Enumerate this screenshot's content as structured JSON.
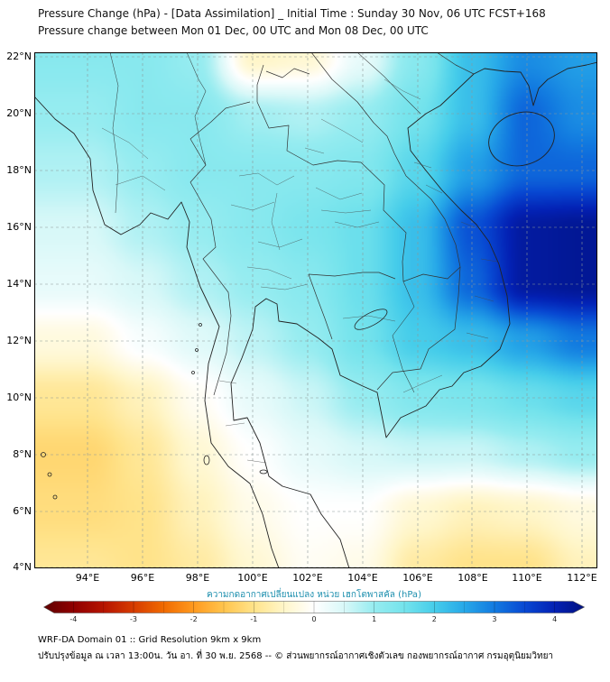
{
  "header": {
    "title": "Pressure Change (hPa) - [Data Assimilation] _ Initial Time : Sunday 30 Nov, 06 UTC FCST+168",
    "subtitle": "Pressure change between Mon 01 Dec, 00 UTC and Mon 08 Dec, 00 UTC"
  },
  "axes": {
    "lat": [
      "22°N",
      "20°N",
      "18°N",
      "16°N",
      "14°N",
      "12°N",
      "10°N",
      "8°N",
      "6°N",
      "4°N"
    ],
    "lon": [
      "94°E",
      "96°E",
      "98°E",
      "100°E",
      "102°E",
      "104°E",
      "106°E",
      "108°E",
      "110°E",
      "112°E"
    ]
  },
  "colorbar": {
    "label": "ความกดอากาศเปลี่ยนแปลง หน่วย เฮกโตพาสคัล (hPa)",
    "label_color": "#1d8fae",
    "ticks": [
      "-4",
      "-3",
      "-2",
      "-1",
      "0",
      "1",
      "2",
      "3",
      "4"
    ]
  },
  "footer": {
    "line1": "WRF-DA Domain 01 :: Grid Resolution 9km x 9km",
    "line2": "ปรับปรุงข้อมูล ณ เวลา 13:00น. วัน อา. ที่ 30 พ.ย. 2568 -- © ส่วนพยากรณ์อากาศเชิงตัวเลข กองพยากรณ์อากาศ กรมอุตุนิยมวิทยา"
  },
  "chart_data": {
    "type": "heatmap",
    "title": "Pressure Change (hPa) - [Data Assimilation] _ Initial Time : Sunday 30 Nov, 06 UTC FCST+168",
    "subtitle": "Pressure change between Mon 01 Dec, 00 UTC and Mon 08 Dec, 00 UTC",
    "units": "hPa",
    "xlabel": "",
    "ylabel": "",
    "grid": true,
    "legend_position": "bottom",
    "xlim": [
      92.05,
      112.55
    ],
    "ylim": [
      4.0,
      22.16
    ],
    "lon": [
      94,
      96,
      98,
      100,
      102,
      104,
      106,
      108,
      110,
      112
    ],
    "lat": [
      22,
      20,
      18,
      16,
      14,
      12,
      10,
      8,
      6,
      4
    ],
    "values_hpa": [
      [
        1.2,
        1.2,
        1.0,
        -0.5,
        -0.4,
        0.3,
        1.2,
        2.2,
        2.8,
        2.6
      ],
      [
        1.0,
        1.2,
        1.2,
        0.9,
        0.8,
        1.0,
        1.5,
        2.2,
        3.2,
        2.8
      ],
      [
        0.8,
        1.0,
        1.2,
        1.2,
        1.2,
        1.3,
        1.8,
        2.6,
        3.2,
        3.2
      ],
      [
        0.5,
        0.8,
        1.0,
        1.2,
        1.4,
        1.6,
        2.2,
        3.4,
        4.2,
        4.3
      ],
      [
        0.3,
        0.5,
        0.8,
        1.0,
        1.2,
        1.6,
        2.2,
        3.2,
        4.2,
        4.3
      ],
      [
        -0.3,
        0.1,
        0.4,
        0.7,
        1.0,
        1.5,
        2.0,
        2.2,
        2.6,
        3.0
      ],
      [
        -0.9,
        -0.6,
        -0.1,
        0.3,
        0.6,
        1.0,
        1.3,
        1.4,
        1.6,
        1.8
      ],
      [
        -1.2,
        -0.9,
        -0.4,
        0.0,
        0.3,
        0.5,
        0.6,
        0.6,
        0.8,
        1.0
      ],
      [
        -1.1,
        -1.0,
        -0.6,
        -0.2,
        0.0,
        0.0,
        -0.4,
        -0.6,
        -0.5,
        -0.3
      ],
      [
        -0.9,
        -1.0,
        -0.8,
        -0.4,
        -0.1,
        -0.2,
        -0.8,
        -1.0,
        -1.0,
        -0.6
      ]
    ],
    "colorbar_ticks": [
      -4,
      -3,
      -2,
      -1,
      0,
      1,
      2,
      3,
      4
    ],
    "color_scale": [
      [
        -4.5,
        "#5e0000"
      ],
      [
        -4.0,
        "#8f0000"
      ],
      [
        -3.5,
        "#b51400"
      ],
      [
        -3.0,
        "#d63c00"
      ],
      [
        -2.5,
        "#f06a00"
      ],
      [
        -2.0,
        "#ff9a1f"
      ],
      [
        -1.5,
        "#ffc44d"
      ],
      [
        -1.0,
        "#ffe38a"
      ],
      [
        -0.5,
        "#fff6c9"
      ],
      [
        0.0,
        "#ffffff"
      ],
      [
        0.5,
        "#d8f8f8"
      ],
      [
        1.0,
        "#96ecf0"
      ],
      [
        1.5,
        "#74e3ec"
      ],
      [
        2.0,
        "#46cdea"
      ],
      [
        2.5,
        "#27a8e8"
      ],
      [
        3.0,
        "#127ae0"
      ],
      [
        3.5,
        "#0848d2"
      ],
      [
        4.0,
        "#0321b4"
      ],
      [
        4.5,
        "#021180"
      ]
    ]
  }
}
